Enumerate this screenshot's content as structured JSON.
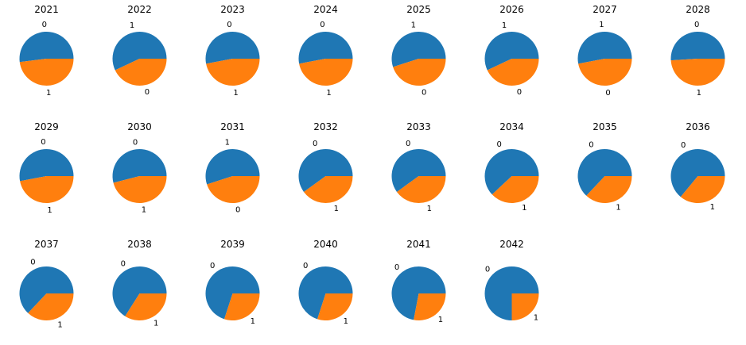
{
  "figure": {
    "background": "#ffffff"
  },
  "chart_data": {
    "type": "pie",
    "title": "",
    "legend": "none",
    "start_angle": 0,
    "direction": "counterclockwise",
    "colors": [
      "#1f77b4",
      "#ff7f0e"
    ],
    "pies": [
      {
        "year": "2021",
        "labels": [
          "0",
          "1"
        ],
        "sizes": [
          0.52,
          0.48
        ]
      },
      {
        "year": "2022",
        "labels": [
          "1",
          "0"
        ],
        "sizes": [
          0.57,
          0.43
        ]
      },
      {
        "year": "2023",
        "labels": [
          "0",
          "1"
        ],
        "sizes": [
          0.53,
          0.47
        ]
      },
      {
        "year": "2024",
        "labels": [
          "0",
          "1"
        ],
        "sizes": [
          0.53,
          0.47
        ]
      },
      {
        "year": "2025",
        "labels": [
          "1",
          "0"
        ],
        "sizes": [
          0.55,
          0.45
        ]
      },
      {
        "year": "2026",
        "labels": [
          "1",
          "0"
        ],
        "sizes": [
          0.57,
          0.43
        ]
      },
      {
        "year": "2027",
        "labels": [
          "1",
          "0"
        ],
        "sizes": [
          0.53,
          0.47
        ]
      },
      {
        "year": "2028",
        "labels": [
          "0",
          "1"
        ],
        "sizes": [
          0.51,
          0.49
        ]
      },
      {
        "year": "2029",
        "labels": [
          "0",
          "1"
        ],
        "sizes": [
          0.53,
          0.47
        ]
      },
      {
        "year": "2030",
        "labels": [
          "0",
          "1"
        ],
        "sizes": [
          0.54,
          0.46
        ]
      },
      {
        "year": "2031",
        "labels": [
          "1",
          "0"
        ],
        "sizes": [
          0.55,
          0.45
        ]
      },
      {
        "year": "2032",
        "labels": [
          "0",
          "1"
        ],
        "sizes": [
          0.6,
          0.4
        ]
      },
      {
        "year": "2033",
        "labels": [
          "0",
          "1"
        ],
        "sizes": [
          0.6,
          0.4
        ]
      },
      {
        "year": "2034",
        "labels": [
          "0",
          "1"
        ],
        "sizes": [
          0.62,
          0.38
        ]
      },
      {
        "year": "2035",
        "labels": [
          "0",
          "1"
        ],
        "sizes": [
          0.63,
          0.37
        ]
      },
      {
        "year": "2036",
        "labels": [
          "0",
          "1"
        ],
        "sizes": [
          0.64,
          0.36
        ]
      },
      {
        "year": "2037",
        "labels": [
          "0",
          "1"
        ],
        "sizes": [
          0.63,
          0.37
        ]
      },
      {
        "year": "2038",
        "labels": [
          "0",
          "1"
        ],
        "sizes": [
          0.66,
          0.34
        ]
      },
      {
        "year": "2039",
        "labels": [
          "0",
          "1"
        ],
        "sizes": [
          0.7,
          0.3
        ]
      },
      {
        "year": "2040",
        "labels": [
          "0",
          "1"
        ],
        "sizes": [
          0.7,
          0.3
        ]
      },
      {
        "year": "2041",
        "labels": [
          "0",
          "1"
        ],
        "sizes": [
          0.72,
          0.28
        ]
      },
      {
        "year": "2042",
        "labels": [
          "0",
          "1"
        ],
        "sizes": [
          0.75,
          0.25
        ]
      }
    ]
  }
}
